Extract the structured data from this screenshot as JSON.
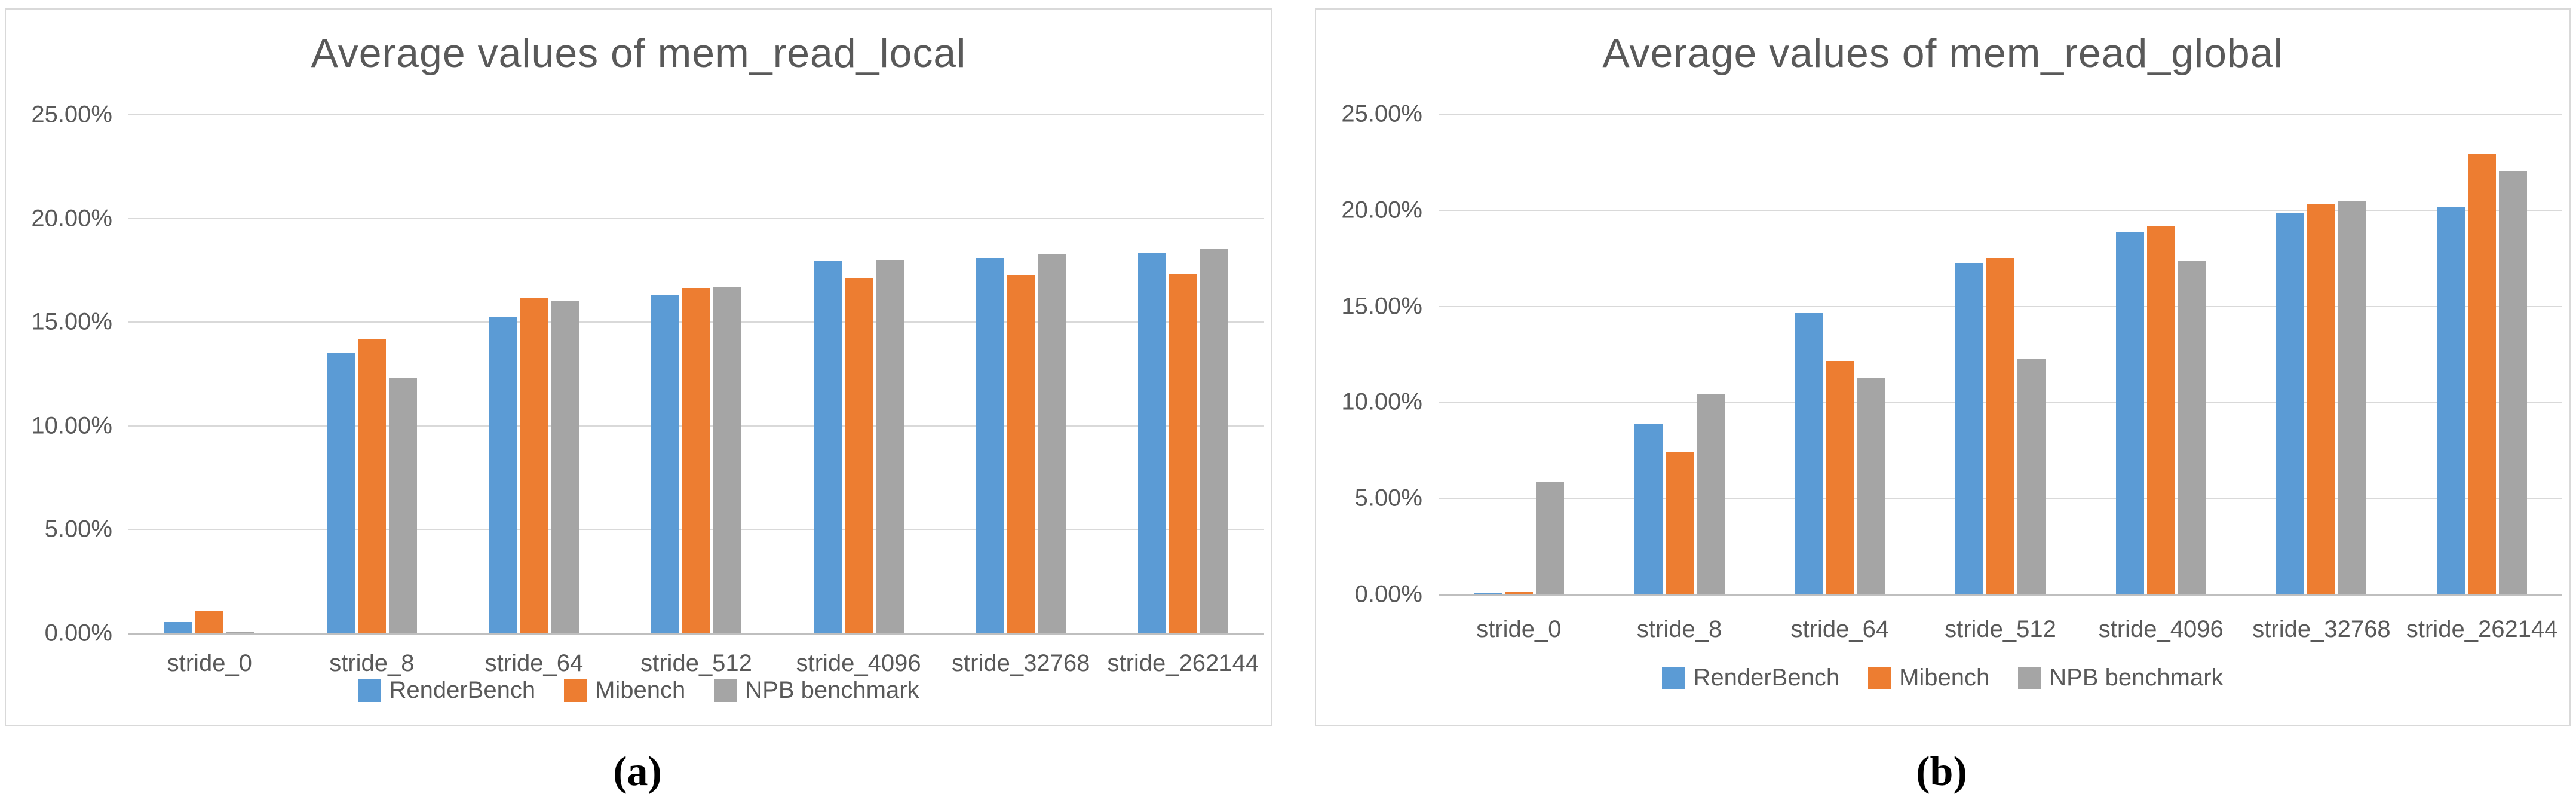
{
  "page": {
    "background": "#FFFFFF"
  },
  "colors": {
    "renderbench_blue": "#5B9BD5",
    "mibench_orange": "#ED7D31",
    "npb_gray": "#A5A5A5",
    "gridline": "#D9D9D9",
    "axis_line": "#BFBFBF",
    "text_gray": "#595959",
    "panel_border": "#D9D9D9"
  },
  "legend": {
    "entries": [
      "RenderBench",
      "Mibench",
      "NPB benchmark"
    ],
    "position": "bottom"
  },
  "chart_data": [
    {
      "type": "bar",
      "panel": "a",
      "title": "Average values of mem_read_local",
      "caption": "(a)",
      "categories": [
        "stride_0",
        "stride_8",
        "stride_64",
        "stride_512",
        "stride_4096",
        "stride_32768",
        "stride_262144"
      ],
      "series": [
        {
          "name": "RenderBench",
          "color": "#5B9BD5",
          "values": [
            0.55,
            13.55,
            15.25,
            16.3,
            17.95,
            18.1,
            18.35
          ]
        },
        {
          "name": "Mibench",
          "color": "#ED7D31",
          "values": [
            1.1,
            14.2,
            16.15,
            16.65,
            17.15,
            17.25,
            17.3
          ]
        },
        {
          "name": "NPB benchmark",
          "color": "#A5A5A5",
          "values": [
            0.1,
            12.3,
            16.0,
            16.7,
            18.0,
            18.3,
            18.55
          ]
        }
      ],
      "xlabel": "",
      "ylabel": "",
      "ylim": [
        0,
        25
      ],
      "y_tick_labels": [
        "25.00%",
        "20.00%",
        "15.00%",
        "10.00%",
        "5.00%",
        "0.00%"
      ],
      "grid": true,
      "legend_position": "bottom"
    },
    {
      "type": "bar",
      "panel": "b",
      "title": "Average values of mem_read_global",
      "caption": "(b)",
      "categories": [
        "stride_0",
        "stride_8",
        "stride_64",
        "stride_512",
        "stride_4096",
        "stride_32768",
        "stride_262144"
      ],
      "series": [
        {
          "name": "RenderBench",
          "color": "#5B9BD5",
          "values": [
            0.1,
            8.9,
            14.65,
            17.25,
            18.85,
            19.85,
            20.15
          ]
        },
        {
          "name": "Mibench",
          "color": "#ED7D31",
          "values": [
            0.15,
            7.4,
            12.15,
            17.5,
            19.2,
            20.3,
            22.95
          ]
        },
        {
          "name": "NPB benchmark",
          "color": "#A5A5A5",
          "values": [
            5.85,
            10.45,
            11.25,
            12.25,
            17.35,
            20.45,
            22.05
          ]
        }
      ],
      "xlabel": "",
      "ylabel": "",
      "ylim": [
        0,
        25
      ],
      "y_tick_labels": [
        "25.00%",
        "20.00%",
        "15.00%",
        "10.00%",
        "5.00%",
        "0.00%"
      ],
      "grid": true,
      "legend_position": "bottom"
    }
  ]
}
